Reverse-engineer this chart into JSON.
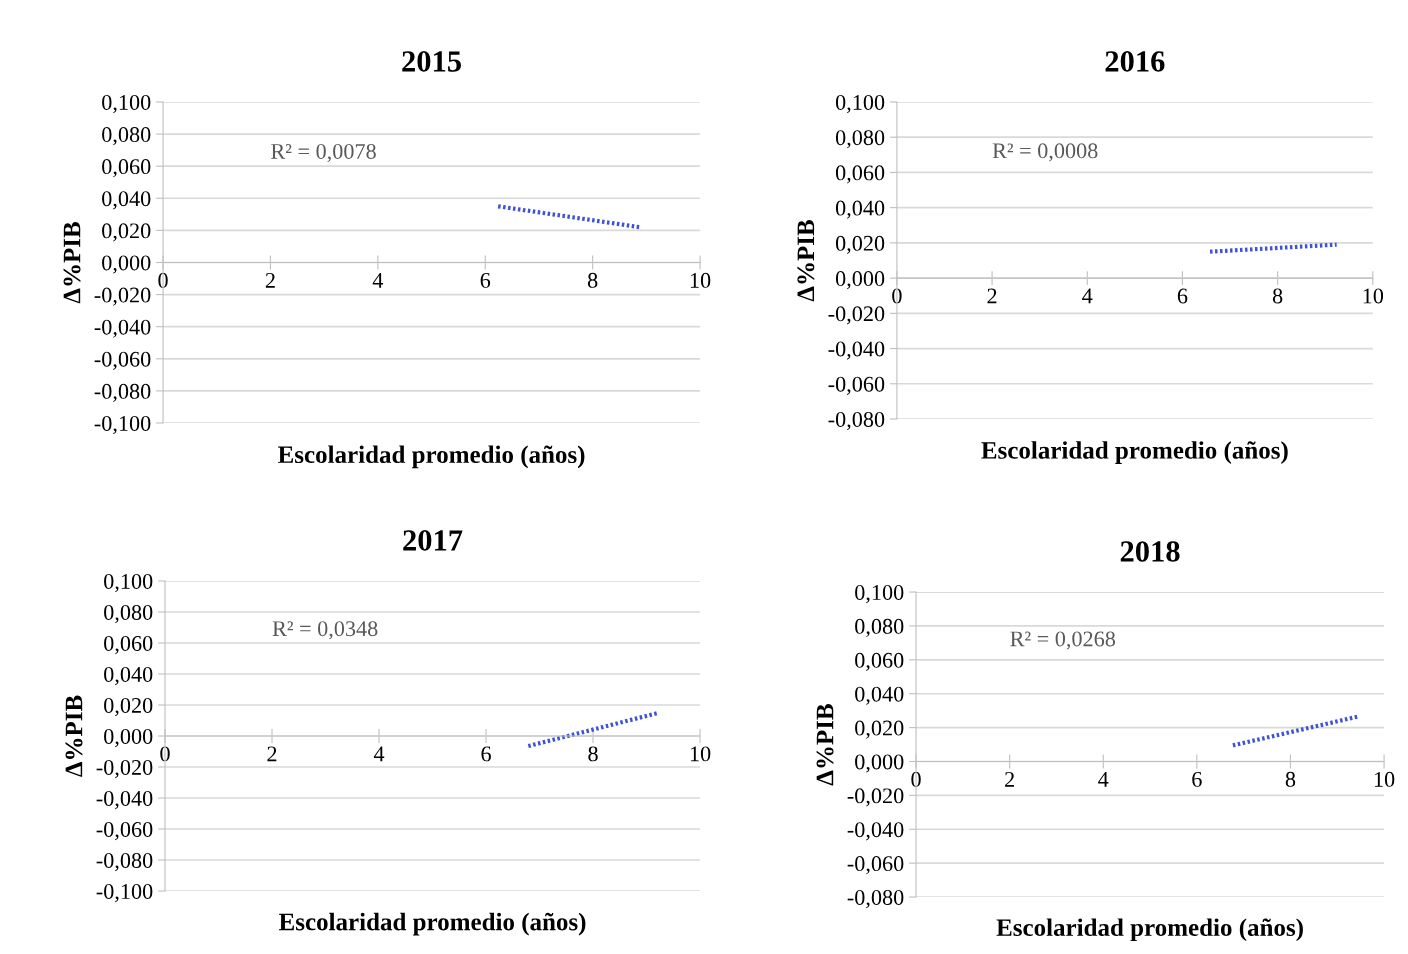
{
  "chart_data": [
    {
      "type": "line",
      "title": "2015",
      "xlabel": "Escolaridad promedio (años)",
      "ylabel": "Δ%PIB",
      "annotations": [
        "R² = 0,0078"
      ],
      "grid": "y",
      "line_style": "dotted",
      "marker": "none",
      "xlim": [
        0,
        10
      ],
      "xticks": [
        0,
        2,
        4,
        6,
        8,
        10
      ],
      "ylim": [
        -0.1,
        0.1
      ],
      "yticks": [
        {
          "value": -0.1,
          "label": "-0,100"
        },
        {
          "value": -0.08,
          "label": "-0,080"
        },
        {
          "value": -0.06,
          "label": "-0,060"
        },
        {
          "value": -0.04,
          "label": "-0,040"
        },
        {
          "value": -0.02,
          "label": "-0,020"
        },
        {
          "value": 0,
          "label": "0,000"
        },
        {
          "value": 0.02,
          "label": "0,020"
        },
        {
          "value": 0.04,
          "label": "0,040"
        },
        {
          "value": 0.06,
          "label": "0,060"
        },
        {
          "value": 0.08,
          "label": "0,080"
        },
        {
          "value": 0.1,
          "label": "0,100"
        }
      ],
      "series": [
        {
          "color": "#3f51d8",
          "x": [
            6.24,
            8.88
          ],
          "values": [
            0.035,
            0.022
          ]
        }
      ]
    },
    {
      "type": "line",
      "title": "2016",
      "xlabel": "Escolaridad promedio (años)",
      "ylabel": "Δ%PIB",
      "annotations": [
        "R² = 0,0008"
      ],
      "grid": "y",
      "line_style": "dotted",
      "marker": "none",
      "xlim": [
        0,
        10
      ],
      "xticks": [
        0,
        2,
        4,
        6,
        8,
        10
      ],
      "ylim": [
        -0.08,
        0.1
      ],
      "yticks": [
        {
          "value": -0.08,
          "label": "-0,080"
        },
        {
          "value": -0.06,
          "label": "-0,060"
        },
        {
          "value": -0.04,
          "label": "-0,040"
        },
        {
          "value": -0.02,
          "label": "-0,020"
        },
        {
          "value": 0,
          "label": "0,000"
        },
        {
          "value": 0.02,
          "label": "0,020"
        },
        {
          "value": 0.04,
          "label": "0,040"
        },
        {
          "value": 0.06,
          "label": "0,060"
        },
        {
          "value": 0.08,
          "label": "0,080"
        },
        {
          "value": 0.1,
          "label": "0,100"
        }
      ],
      "series": [
        {
          "color": "#3f51d8",
          "x": [
            6.58,
            9.24
          ],
          "values": [
            0.015,
            0.019
          ]
        }
      ]
    },
    {
      "type": "line",
      "title": "2017",
      "xlabel": "Escolaridad promedio (años)",
      "ylabel": "Δ%PIB",
      "annotations": [
        "R² = 0,0348"
      ],
      "grid": "y",
      "line_style": "dotted",
      "marker": "none",
      "xlim": [
        0,
        10
      ],
      "xticks": [
        0,
        2,
        4,
        6,
        8,
        10
      ],
      "ylim": [
        -0.1,
        0.1
      ],
      "yticks": [
        {
          "value": -0.1,
          "label": "-0,100"
        },
        {
          "value": -0.08,
          "label": "-0,080"
        },
        {
          "value": -0.06,
          "label": "-0,060"
        },
        {
          "value": -0.04,
          "label": "-0,040"
        },
        {
          "value": -0.02,
          "label": "-0,020"
        },
        {
          "value": 0,
          "label": "0,000"
        },
        {
          "value": 0.02,
          "label": "0,020"
        },
        {
          "value": 0.04,
          "label": "0,040"
        },
        {
          "value": 0.06,
          "label": "0,060"
        },
        {
          "value": 0.08,
          "label": "0,080"
        },
        {
          "value": 0.1,
          "label": "0,100"
        }
      ],
      "series": [
        {
          "color": "#3f51d8",
          "x": [
            6.79,
            9.23
          ],
          "values": [
            -0.0065,
            0.015
          ]
        }
      ]
    },
    {
      "type": "line",
      "title": "2018",
      "xlabel": "Escolaridad promedio (años)",
      "ylabel": "Δ%PIB",
      "annotations": [
        "R² = 0,0268"
      ],
      "grid": "y",
      "line_style": "dotted",
      "marker": "none",
      "xlim": [
        0,
        10
      ],
      "xticks": [
        0,
        2,
        4,
        6,
        8,
        10
      ],
      "ylim": [
        -0.08,
        0.1
      ],
      "yticks": [
        {
          "value": -0.08,
          "label": "-0,080"
        },
        {
          "value": -0.06,
          "label": "-0,060"
        },
        {
          "value": -0.04,
          "label": "-0,040"
        },
        {
          "value": -0.02,
          "label": "-0,020"
        },
        {
          "value": 0,
          "label": "0,000"
        },
        {
          "value": 0.02,
          "label": "0,020"
        },
        {
          "value": 0.04,
          "label": "0,040"
        },
        {
          "value": 0.06,
          "label": "0,060"
        },
        {
          "value": 0.08,
          "label": "0,080"
        },
        {
          "value": 0.1,
          "label": "0,100"
        }
      ],
      "series": [
        {
          "color": "#3f51d8",
          "x": [
            6.77,
            9.44
          ],
          "values": [
            0.0095,
            0.0265
          ]
        }
      ]
    }
  ]
}
